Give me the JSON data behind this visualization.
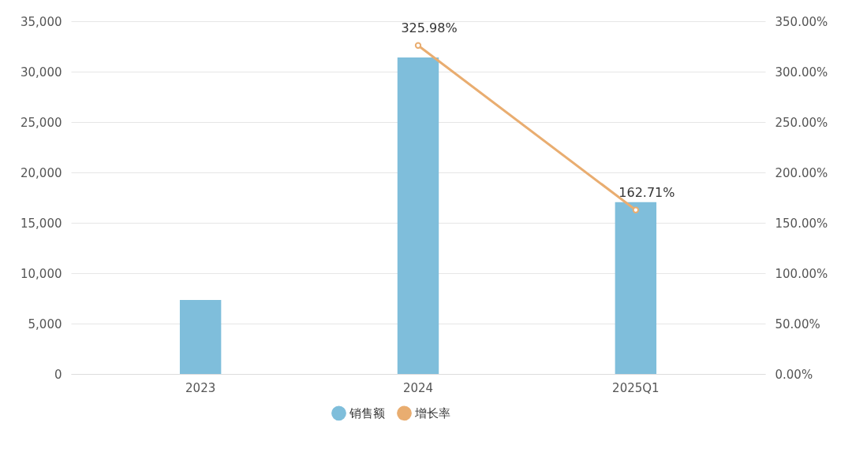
{
  "chart_data": {
    "type": "bar",
    "categories": [
      "2023",
      "2024",
      "2025Q1"
    ],
    "series": [
      {
        "name": "销售额",
        "color": "#7fbedb",
        "values": [
          7350,
          31400,
          17050
        ]
      },
      {
        "name": "增长率",
        "type": "line",
        "axis": "y2",
        "color": "#e9ad70",
        "marker": "circle",
        "values": [
          null,
          325.98,
          162.71
        ],
        "value_labels": [
          null,
          "325.98%",
          "162.71%"
        ]
      }
    ],
    "ylim": [
      0,
      35000
    ],
    "yticks": [
      {
        "value": 0,
        "label": "0"
      },
      {
        "value": 5000,
        "label": "5,000"
      },
      {
        "value": 10000,
        "label": "10,000"
      },
      {
        "value": 15000,
        "label": "15,000"
      },
      {
        "value": 20000,
        "label": "20,000"
      },
      {
        "value": 25000,
        "label": "25,000"
      },
      {
        "value": 30000,
        "label": "30,000"
      },
      {
        "value": 35000,
        "label": "35,000"
      }
    ],
    "y2lim": [
      0,
      350
    ],
    "y2ticks": [
      {
        "value": 0,
        "label": "0.00%"
      },
      {
        "value": 50,
        "label": "50.00%"
      },
      {
        "value": 100,
        "label": "100.00%"
      },
      {
        "value": 150,
        "label": "150.00%"
      },
      {
        "value": 200,
        "label": "200.00%"
      },
      {
        "value": 250,
        "label": "250.00%"
      },
      {
        "value": 300,
        "label": "300.00%"
      },
      {
        "value": 350,
        "label": "350.00%"
      }
    ],
    "grid": "y",
    "legend": "bottom"
  }
}
